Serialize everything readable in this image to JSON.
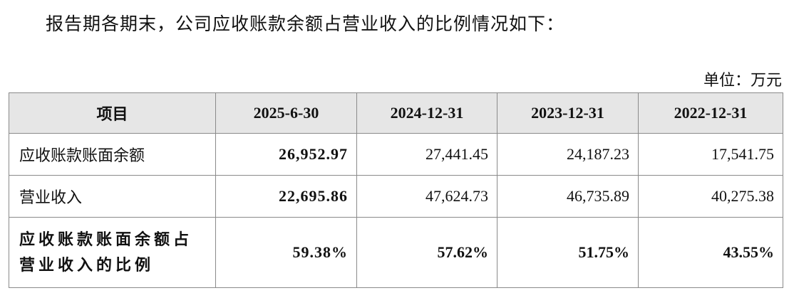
{
  "intro": "报告期各期末，公司应收账款余额占营业收入的比例情况如下：",
  "unit": "单位：万元",
  "table": {
    "header": [
      "项目",
      "2025-6-30",
      "2024-12-31",
      "2023-12-31",
      "2022-12-31"
    ],
    "rows": [
      [
        "应收账款账面余额",
        "26,952.97",
        "27,441.45",
        "24,187.23",
        "17,541.75"
      ],
      [
        "营业收入",
        "22,695.86",
        "47,624.73",
        "46,735.89",
        "40,275.38"
      ],
      [
        "应收账款账面余额占营业收入的比例",
        "59.38%",
        "57.62%",
        "51.75%",
        "43.55%"
      ]
    ]
  }
}
